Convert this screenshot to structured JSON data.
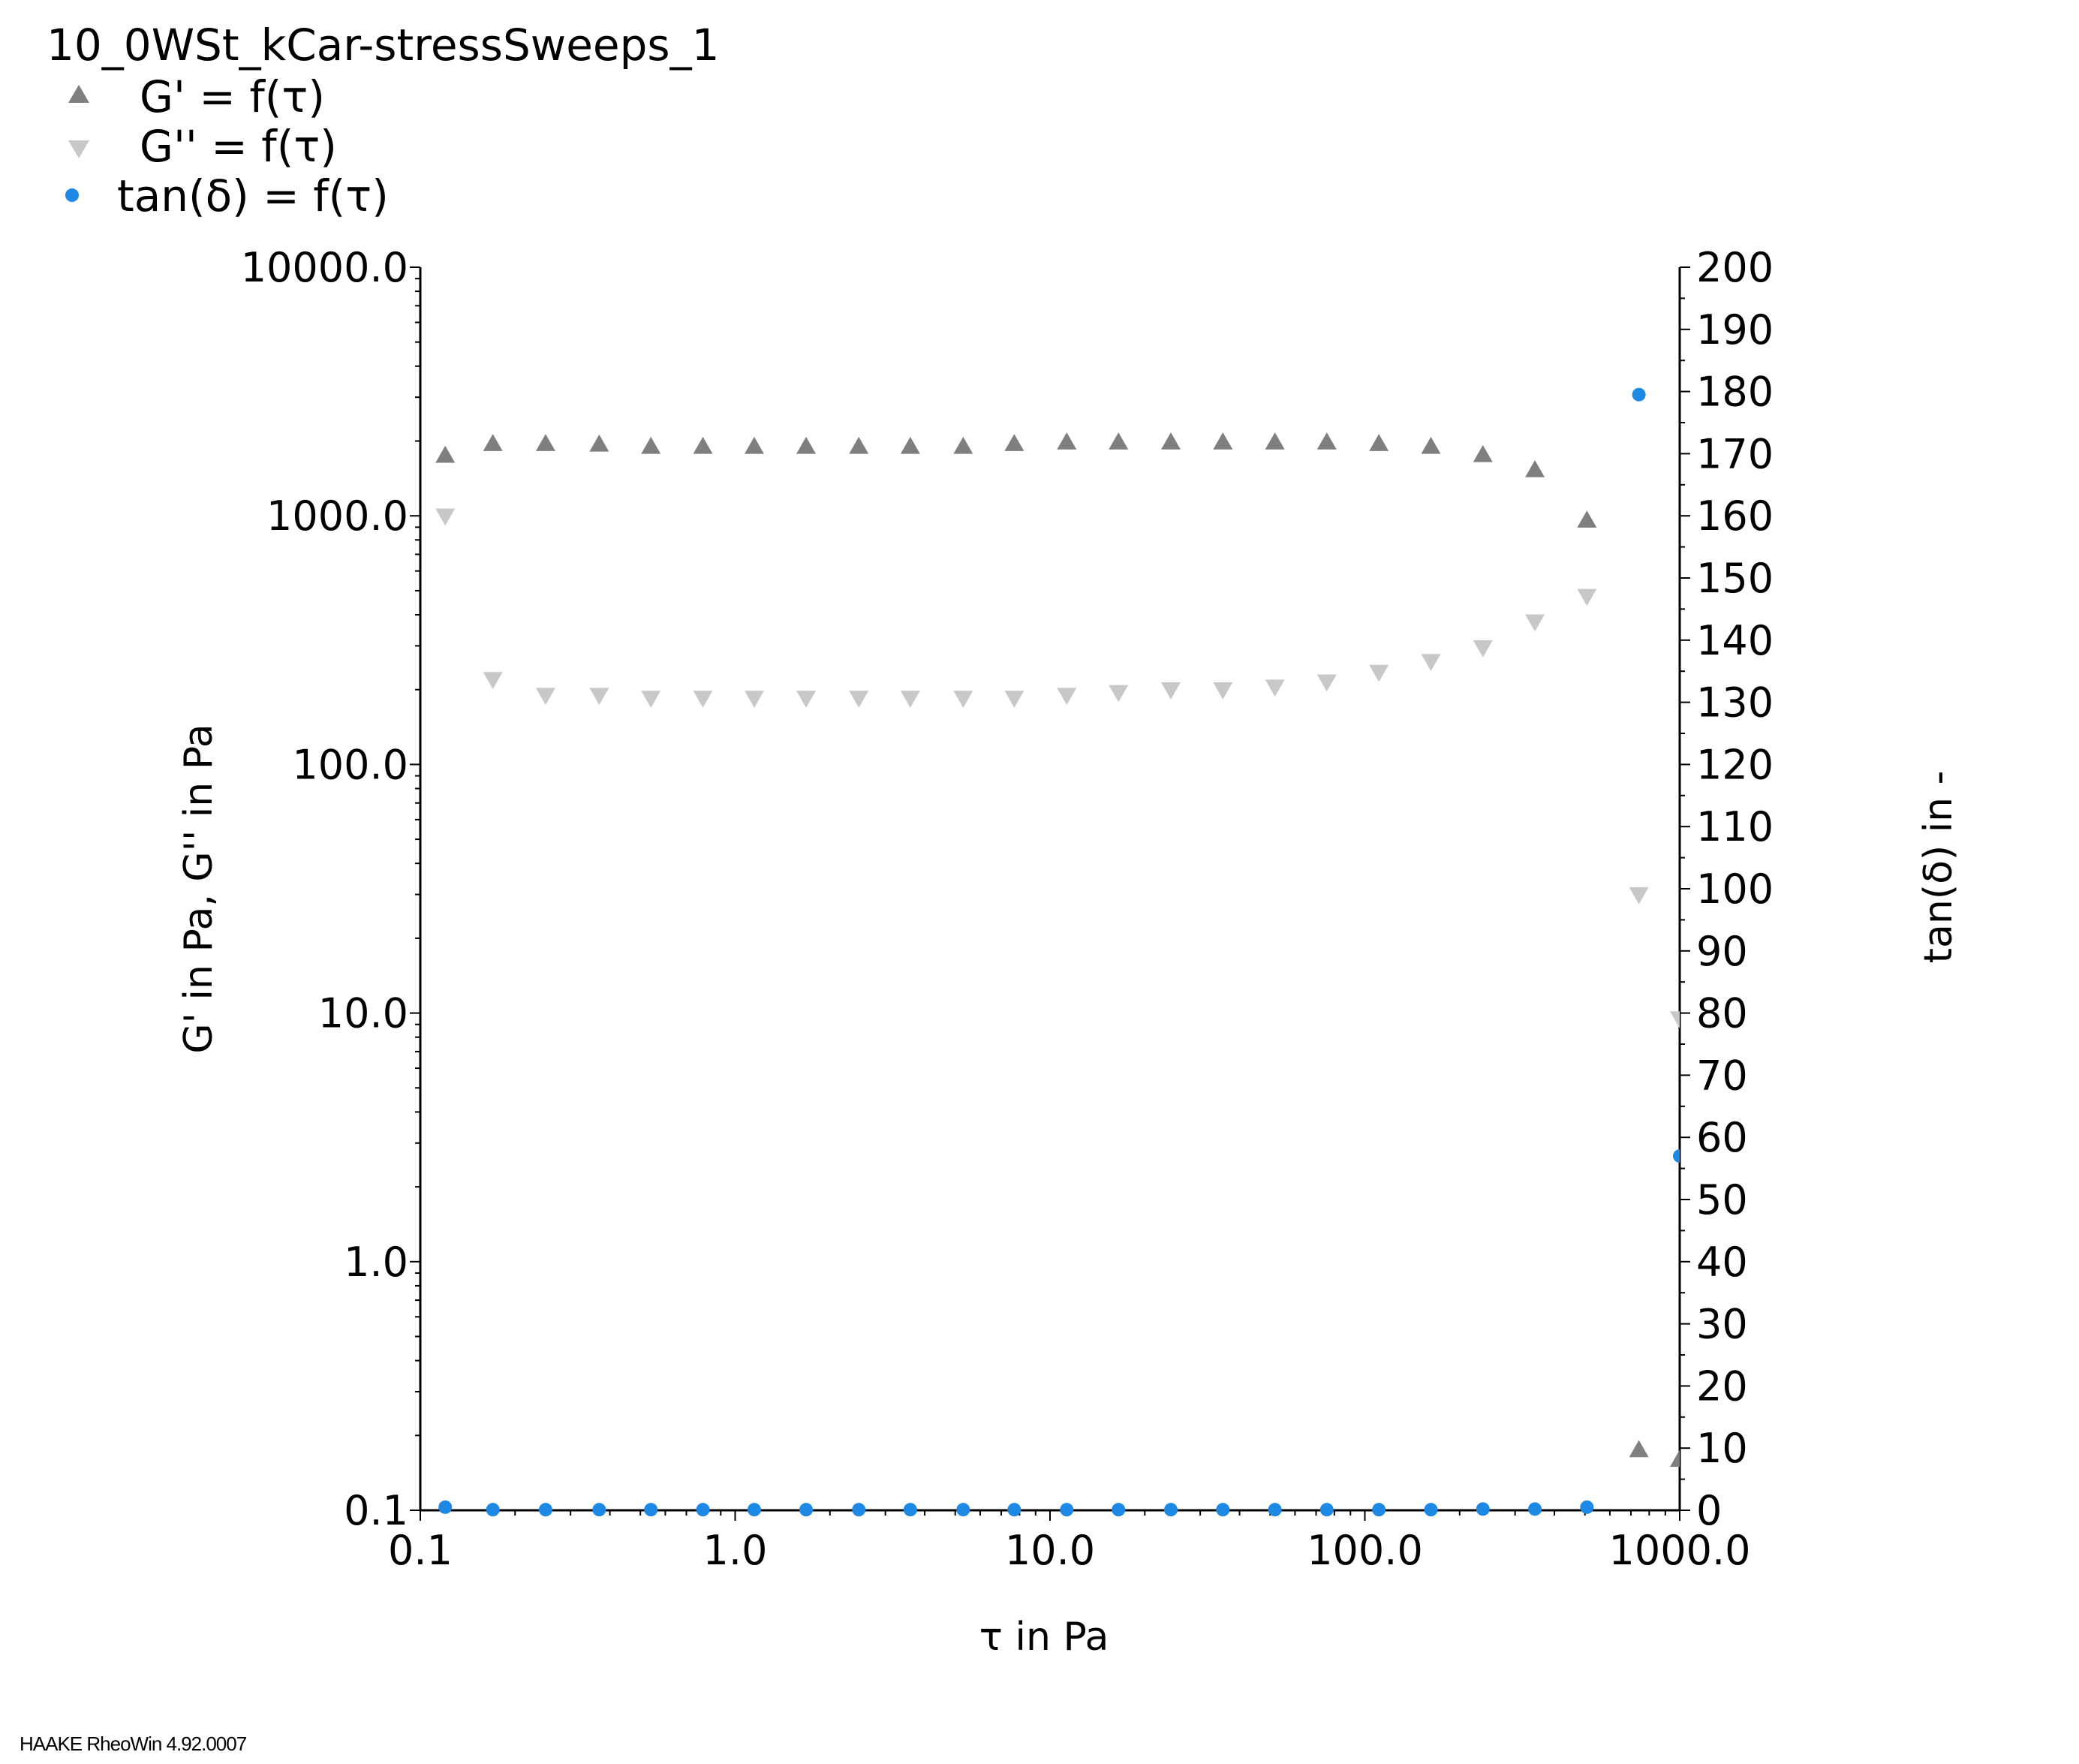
{
  "chart_data": {
    "type": "scatter",
    "title": "10_0WSt_kCar-stressSweeps_1",
    "xlabel": "τ in Pa",
    "ylabel": "G' in Pa, G'' in Pa",
    "y2label": "tan(δ) in -",
    "x_scale": "log",
    "y_scale": "log",
    "y2_scale": "linear",
    "xlim": [
      0.1,
      1000.0
    ],
    "ylim": [
      0.1,
      10000.0
    ],
    "y2lim": [
      0,
      200
    ],
    "x_ticks": [
      "0.1",
      "1.0",
      "10.0",
      "100.0",
      "1000.0"
    ],
    "y_ticks": [
      "0.1",
      "1.0",
      "10.0",
      "100.0",
      "1000.0",
      "10000.0"
    ],
    "y2_ticks": [
      "0",
      "10",
      "20",
      "30",
      "40",
      "50",
      "60",
      "70",
      "80",
      "90",
      "100",
      "110",
      "120",
      "130",
      "140",
      "150",
      "160",
      "170",
      "180",
      "190",
      "200"
    ],
    "legend_position": "top-left",
    "grid": false,
    "series": [
      {
        "name": "G' = f(τ)",
        "axis": "left",
        "marker": "triangle-up",
        "color": "#7f7f7f",
        "x": [
          0.12,
          0.17,
          0.25,
          0.37,
          0.54,
          0.79,
          1.15,
          1.68,
          2.47,
          3.6,
          5.3,
          7.7,
          11.3,
          16.5,
          24.2,
          35.4,
          51.8,
          75.7,
          110.8,
          162.1,
          237.1,
          346.8,
          507.3,
          741.9,
          1000.0
        ],
        "values": [
          1750,
          1950,
          1950,
          1940,
          1900,
          1900,
          1900,
          1900,
          1900,
          1900,
          1900,
          1950,
          1980,
          1980,
          1980,
          1980,
          1980,
          1980,
          1950,
          1900,
          1760,
          1530,
          960,
          0.175,
          0.16
        ]
      },
      {
        "name": "G'' = f(τ)",
        "axis": "left",
        "marker": "triangle-down",
        "color": "#c8c8c8",
        "x": [
          0.12,
          0.17,
          0.25,
          0.37,
          0.54,
          0.79,
          1.15,
          1.68,
          2.47,
          3.6,
          5.3,
          7.7,
          11.3,
          16.5,
          24.2,
          35.4,
          51.8,
          75.7,
          110.8,
          162.1,
          237.1,
          346.8,
          507.3,
          741.9,
          1000.0
        ],
        "values": [
          1000,
          220,
          190,
          190,
          185,
          185,
          185,
          185,
          185,
          185,
          185,
          185,
          190,
          195,
          200,
          200,
          205,
          215,
          235,
          260,
          295,
          375,
          475,
          30,
          9.5
        ]
      },
      {
        "name": "tan(δ) = f(τ)",
        "axis": "right",
        "marker": "circle",
        "color": "#1e88e5",
        "x": [
          0.12,
          0.17,
          0.25,
          0.37,
          0.54,
          0.79,
          1.15,
          1.68,
          2.47,
          3.6,
          5.3,
          7.7,
          11.3,
          16.5,
          24.2,
          35.4,
          51.8,
          75.7,
          110.8,
          162.1,
          237.1,
          346.8,
          507.3,
          741.9,
          1000.0
        ],
        "values": [
          0.5,
          0.1,
          0.1,
          0.1,
          0.1,
          0.1,
          0.1,
          0.1,
          0.1,
          0.1,
          0.1,
          0.1,
          0.1,
          0.1,
          0.1,
          0.1,
          0.1,
          0.1,
          0.1,
          0.1,
          0.2,
          0.2,
          0.5,
          179.5,
          57
        ]
      }
    ]
  },
  "footer": "HAAKE RheoWin 4.92.0007"
}
